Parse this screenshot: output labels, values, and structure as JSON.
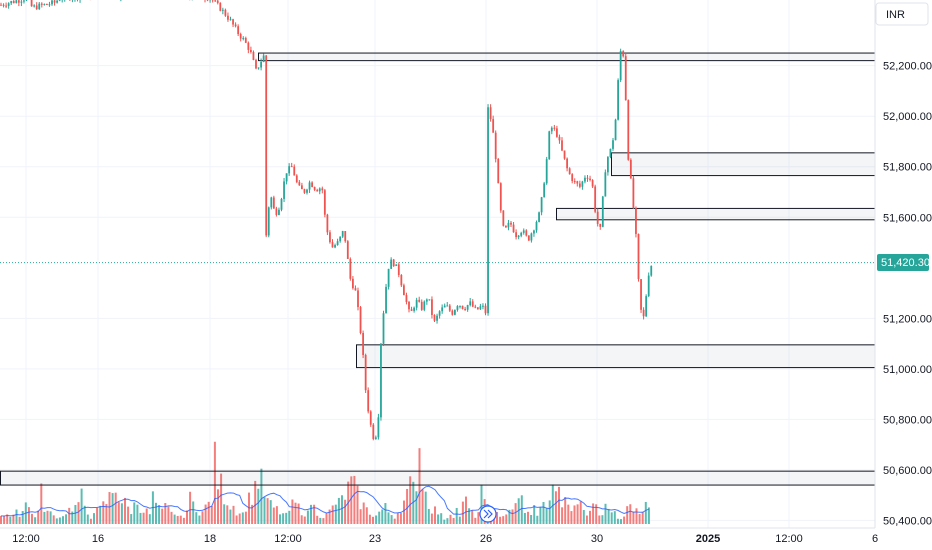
{
  "chart_data": {
    "type": "candlestick",
    "currency": "INR",
    "last_price": "51,420.30",
    "y_ticks": [
      "52,200.00",
      "52,000.00",
      "51,800.00",
      "51,600.00",
      "51,200.00",
      "51,000.00",
      "50,800.00",
      "50,600.00",
      "50,400.00"
    ],
    "y_tick_values": [
      52200,
      52000,
      51800,
      51600,
      51200,
      51000,
      50800,
      50600,
      50400
    ],
    "x_ticks": [
      "12:00",
      "16",
      "18",
      "12:00",
      "23",
      "26",
      "30",
      "2025",
      "12:00",
      "6"
    ],
    "x_tick_bold": [
      false,
      false,
      false,
      false,
      false,
      false,
      false,
      true,
      false,
      false
    ],
    "ylim": [
      50370,
      52460
    ],
    "zones": [
      {
        "low": 52220,
        "high": 52250
      },
      {
        "low": 51765,
        "high": 51855
      },
      {
        "low": 51590,
        "high": 51635
      },
      {
        "low": 51005,
        "high": 51095
      },
      {
        "low": 50540,
        "high": 50595
      }
    ],
    "price_path": [
      [
        0,
        52440
      ],
      [
        28,
        52470
      ],
      [
        32,
        52430
      ],
      [
        55,
        52450
      ],
      [
        60,
        52470
      ],
      [
        100,
        52480
      ],
      [
        175,
        52480
      ],
      [
        210,
        52470
      ],
      [
        222,
        52420
      ],
      [
        230,
        52380
      ],
      [
        238,
        52330
      ],
      [
        244,
        52300
      ],
      [
        250,
        52260
      ],
      [
        256,
        52180
      ],
      [
        260,
        52210
      ],
      [
        264,
        52240
      ],
      [
        266,
        51520
      ],
      [
        270,
        51700
      ],
      [
        275,
        51610
      ],
      [
        280,
        51650
      ],
      [
        286,
        51780
      ],
      [
        292,
        51800
      ],
      [
        298,
        51720
      ],
      [
        304,
        51700
      ],
      [
        310,
        51740
      ],
      [
        316,
        51710
      ],
      [
        322,
        51720
      ],
      [
        326,
        51560
      ],
      [
        332,
        51480
      ],
      [
        338,
        51500
      ],
      [
        344,
        51550
      ],
      [
        350,
        51360
      ],
      [
        356,
        51300
      ],
      [
        362,
        51100
      ],
      [
        366,
        50900
      ],
      [
        370,
        50790
      ],
      [
        374,
        50720
      ],
      [
        378,
        50760
      ],
      [
        380,
        51060
      ],
      [
        384,
        51250
      ],
      [
        388,
        51400
      ],
      [
        392,
        51430
      ],
      [
        398,
        51390
      ],
      [
        404,
        51300
      ],
      [
        410,
        51210
      ],
      [
        416,
        51270
      ],
      [
        422,
        51240
      ],
      [
        428,
        51290
      ],
      [
        434,
        51180
      ],
      [
        440,
        51230
      ],
      [
        446,
        51250
      ],
      [
        452,
        51220
      ],
      [
        458,
        51260
      ],
      [
        464,
        51240
      ],
      [
        470,
        51260
      ],
      [
        476,
        51230
      ],
      [
        482,
        51250
      ],
      [
        486,
        51220
      ],
      [
        488,
        52030
      ],
      [
        492,
        51970
      ],
      [
        496,
        51830
      ],
      [
        500,
        51640
      ],
      [
        504,
        51540
      ],
      [
        510,
        51580
      ],
      [
        516,
        51530
      ],
      [
        522,
        51550
      ],
      [
        528,
        51510
      ],
      [
        534,
        51560
      ],
      [
        540,
        51620
      ],
      [
        546,
        51800
      ],
      [
        550,
        51960
      ],
      [
        556,
        51940
      ],
      [
        562,
        51860
      ],
      [
        568,
        51780
      ],
      [
        574,
        51740
      ],
      [
        580,
        51720
      ],
      [
        586,
        51770
      ],
      [
        592,
        51740
      ],
      [
        596,
        51600
      ],
      [
        600,
        51540
      ],
      [
        606,
        51820
      ],
      [
        612,
        51880
      ],
      [
        616,
        52000
      ],
      [
        620,
        52260
      ],
      [
        624,
        52240
      ],
      [
        628,
        51850
      ],
      [
        632,
        51700
      ],
      [
        636,
        51520
      ],
      [
        640,
        51240
      ],
      [
        644,
        51200
      ],
      [
        648,
        51370
      ],
      [
        652,
        51420
      ]
    ],
    "volume_heights": [
      8,
      6,
      7,
      12,
      10,
      14,
      9,
      18,
      22,
      15,
      10,
      9,
      12,
      30,
      18,
      12,
      10,
      8,
      9,
      6,
      11,
      12,
      14,
      18,
      16,
      22,
      26,
      14,
      10,
      8,
      16,
      12,
      14,
      18,
      22,
      26,
      32,
      40,
      28,
      22,
      20,
      16,
      14,
      18,
      22,
      18,
      14,
      12,
      10,
      26,
      20,
      14,
      12,
      16,
      14,
      10,
      12,
      8,
      6,
      10,
      14,
      24,
      20,
      18,
      14,
      12,
      16,
      20,
      24,
      60,
      44,
      38,
      30,
      24,
      20,
      18,
      14,
      12,
      10,
      20,
      24,
      30,
      38,
      46,
      40,
      30,
      22,
      18,
      16,
      14,
      12,
      10,
      8,
      14,
      18,
      20,
      16,
      14,
      12,
      10,
      24,
      16,
      12,
      10,
      8,
      9,
      12,
      16,
      22,
      20,
      24,
      30,
      34,
      40,
      36,
      28,
      22,
      18,
      14,
      12,
      10,
      8,
      12,
      14,
      16,
      12,
      10,
      8,
      12,
      18,
      22,
      28,
      36,
      34,
      50,
      78,
      48,
      30,
      22,
      16,
      14,
      12
    ]
  }
}
